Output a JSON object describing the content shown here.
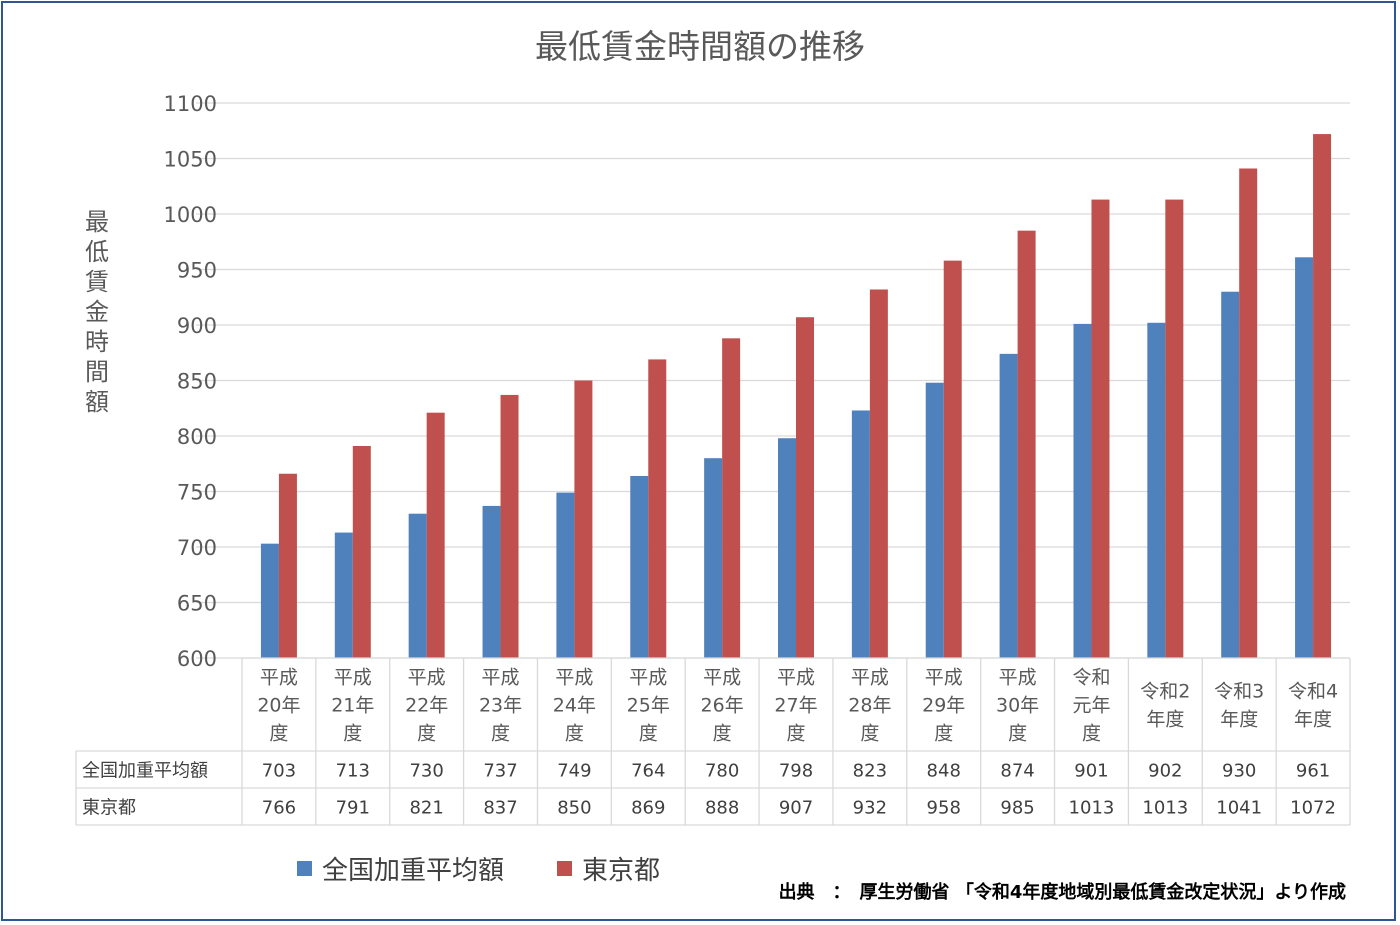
{
  "chart_data": {
    "type": "bar",
    "title": "最低賃金時間額の推移",
    "ylabel": "最低賃金時間額",
    "xlabel": "",
    "ylim": [
      600,
      1100
    ],
    "ytick_step": 50,
    "yticks": [
      "600",
      "650",
      "700",
      "750",
      "800",
      "850",
      "900",
      "950",
      "1000",
      "1050",
      "1100"
    ],
    "grid": true,
    "legend_position": "bottom-left",
    "categories": [
      [
        "平成",
        "20年",
        "度"
      ],
      [
        "平成",
        "21年",
        "度"
      ],
      [
        "平成",
        "22年",
        "度"
      ],
      [
        "平成",
        "23年",
        "度"
      ],
      [
        "平成",
        "24年",
        "度"
      ],
      [
        "平成",
        "25年",
        "度"
      ],
      [
        "平成",
        "26年",
        "度"
      ],
      [
        "平成",
        "27年",
        "度"
      ],
      [
        "平成",
        "28年",
        "度"
      ],
      [
        "平成",
        "29年",
        "度"
      ],
      [
        "平成",
        "30年",
        "度"
      ],
      [
        "令和",
        "元年",
        "度"
      ],
      [
        "令和2",
        "年度"
      ],
      [
        "令和3",
        "年度"
      ],
      [
        "令和4",
        "年度"
      ]
    ],
    "series": [
      {
        "name": "全国加重平均額",
        "color": "#4f81bd",
        "values": [
          703,
          713,
          730,
          737,
          749,
          764,
          780,
          798,
          823,
          848,
          874,
          901,
          902,
          930,
          961
        ]
      },
      {
        "name": "東京都",
        "color": "#c0504d",
        "values": [
          766,
          791,
          821,
          837,
          850,
          869,
          888,
          907,
          932,
          958,
          985,
          1013,
          1013,
          1041,
          1072
        ]
      }
    ]
  },
  "source": "出典　：　厚生労働省 「令和4年度地域別最低賃金改定状況」より作成"
}
